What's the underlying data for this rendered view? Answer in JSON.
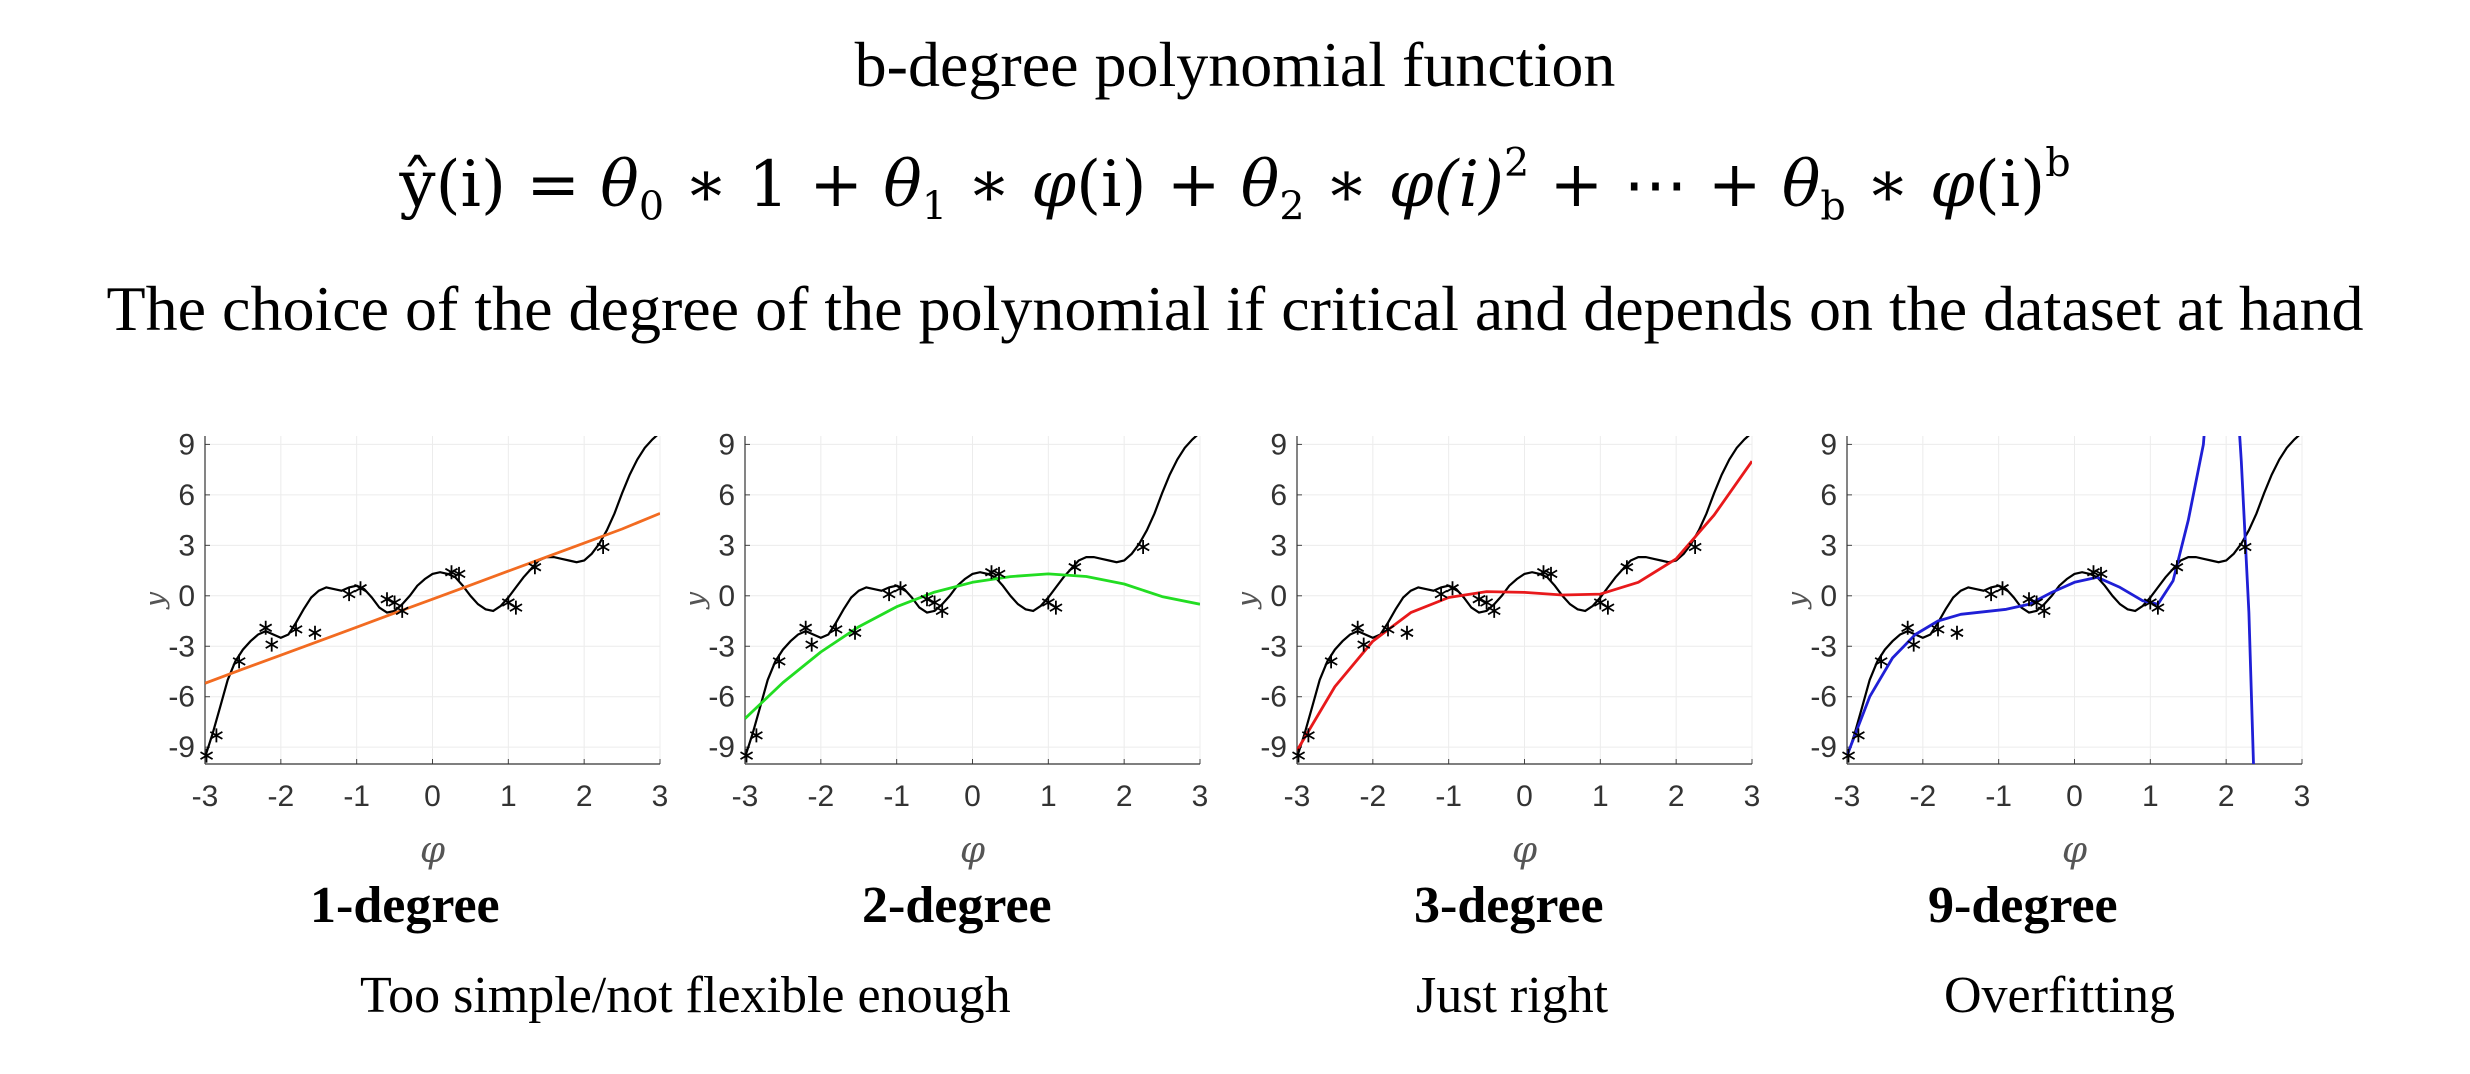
{
  "header": {
    "title": "b-degree polynomial function",
    "subtitle": "The choice of the degree of the polynomial if critical and depends on the dataset at hand"
  },
  "formula": {
    "lhs": "ŷ(i) = ",
    "theta": "θ",
    "phi": "φ",
    "i_roman": "(i)",
    "i_italic": "(i)",
    "times": " ∗ ",
    "plus": " + ",
    "one": "1",
    "ellipsis": "⋯",
    "sub0": "0",
    "sub1": "1",
    "sub2": "2",
    "subb": "b",
    "sup2": "2",
    "supb": "b"
  },
  "labels": {
    "verdict_simple": "Too simple/not flexible enough",
    "verdict_right": "Just right",
    "verdict_over": "Overfitting"
  },
  "chart_data": [
    {
      "type": "line",
      "caption": "1-degree",
      "xlabel": "φ",
      "ylabel": "y",
      "xlim": [
        -3,
        3
      ],
      "ylim": [
        -10,
        9.5
      ],
      "xticks": [
        "-3",
        "-2",
        "-1",
        "0",
        "1",
        "2",
        "3"
      ],
      "yticks": [
        "-9",
        "-6",
        "-3",
        "0",
        "3",
        "6",
        "9"
      ],
      "grid": true,
      "truth_color": "#000000",
      "fit_color": "#f26b21",
      "fit_x": [
        -3.0,
        -2.5,
        -2.0,
        -1.5,
        -1.0,
        -0.5,
        0.0,
        0.5,
        1.0,
        1.5,
        2.0,
        2.5,
        3.0
      ],
      "fit_y": [
        -5.2,
        -4.36,
        -3.53,
        -2.7,
        -1.87,
        -1.03,
        -0.2,
        0.63,
        1.47,
        2.3,
        3.13,
        3.97,
        4.9
      ]
    },
    {
      "type": "line",
      "caption": "2-degree",
      "xlabel": "φ",
      "ylabel": "y",
      "xlim": [
        -3,
        3
      ],
      "ylim": [
        -10,
        9.5
      ],
      "xticks": [
        "-3",
        "-2",
        "-1",
        "0",
        "1",
        "2",
        "3"
      ],
      "yticks": [
        "-9",
        "-6",
        "-3",
        "0",
        "3",
        "6",
        "9"
      ],
      "grid": true,
      "truth_color": "#000000",
      "fit_color": "#22dd22",
      "fit_x": [
        -3.0,
        -2.5,
        -2.0,
        -1.5,
        -1.0,
        -0.5,
        0.0,
        0.5,
        1.0,
        1.5,
        2.0,
        2.5,
        3.0
      ],
      "fit_y": [
        -7.3,
        -5.16,
        -3.34,
        -1.84,
        -0.65,
        0.22,
        0.8,
        1.14,
        1.3,
        1.15,
        0.7,
        -0.05,
        -0.5
      ]
    },
    {
      "type": "line",
      "caption": "3-degree",
      "xlabel": "φ",
      "ylabel": "y",
      "xlim": [
        -3,
        3
      ],
      "ylim": [
        -10,
        9.5
      ],
      "xticks": [
        "-3",
        "-2",
        "-1",
        "0",
        "1",
        "2",
        "3"
      ],
      "yticks": [
        "-9",
        "-6",
        "-3",
        "0",
        "3",
        "6",
        "9"
      ],
      "grid": true,
      "truth_color": "#000000",
      "fit_color": "#e8191b",
      "fit_x": [
        -3.0,
        -2.5,
        -2.0,
        -1.5,
        -1.0,
        -0.5,
        0.0,
        0.5,
        1.0,
        1.5,
        2.0,
        2.5,
        3.0
      ],
      "fit_y": [
        -9.2,
        -5.4,
        -2.7,
        -1.0,
        -0.1,
        0.25,
        0.2,
        0.05,
        0.1,
        0.8,
        2.2,
        4.8,
        8.0
      ]
    },
    {
      "type": "line",
      "caption": "9-degree",
      "xlabel": "φ",
      "ylabel": "y",
      "xlim": [
        -3,
        3
      ],
      "ylim": [
        -10,
        9.5
      ],
      "xticks": [
        "-3",
        "-2",
        "-1",
        "0",
        "1",
        "2",
        "3"
      ],
      "yticks": [
        "-9",
        "-6",
        "-3",
        "0",
        "3",
        "6",
        "9"
      ],
      "grid": true,
      "truth_color": "#000000",
      "fit_color": "#1f1fd6",
      "fit_x": [
        -3.0,
        -2.7,
        -2.4,
        -2.1,
        -1.8,
        -1.5,
        -1.2,
        -0.9,
        -0.6,
        -0.3,
        0.0,
        0.3,
        0.6,
        0.9,
        1.1,
        1.3,
        1.5,
        1.7,
        1.8,
        1.9,
        2.0,
        2.1,
        2.2,
        2.3,
        2.36
      ],
      "fit_y": [
        -9.5,
        -6.0,
        -3.7,
        -2.3,
        -1.5,
        -1.1,
        -0.95,
        -0.8,
        -0.5,
        0.2,
        0.8,
        1.1,
        0.5,
        -0.3,
        -0.5,
        0.9,
        4.5,
        9.0,
        15.0,
        18.0,
        19.0,
        15.0,
        8.0,
        -1.0,
        -10.0
      ]
    }
  ],
  "shared_data": {
    "truth_x": [
      -3.0,
      -2.9,
      -2.8,
      -2.7,
      -2.6,
      -2.5,
      -2.4,
      -2.3,
      -2.2,
      -2.1,
      -2.0,
      -1.9,
      -1.8,
      -1.7,
      -1.6,
      -1.5,
      -1.4,
      -1.3,
      -1.2,
      -1.1,
      -1.0,
      -0.9,
      -0.8,
      -0.7,
      -0.6,
      -0.5,
      -0.4,
      -0.3,
      -0.2,
      -0.1,
      0.0,
      0.1,
      0.2,
      0.3,
      0.4,
      0.5,
      0.6,
      0.7,
      0.8,
      0.9,
      1.0,
      1.1,
      1.2,
      1.3,
      1.4,
      1.5,
      1.6,
      1.7,
      1.8,
      1.9,
      2.0,
      2.1,
      2.2,
      2.3,
      2.4,
      2.5,
      2.6,
      2.7,
      2.8,
      2.9,
      3.0
    ],
    "truth_y": [
      -9.6,
      -8.2,
      -6.6,
      -5.0,
      -3.9,
      -3.2,
      -2.7,
      -2.3,
      -2.1,
      -2.3,
      -2.5,
      -2.3,
      -1.6,
      -0.8,
      -0.1,
      0.3,
      0.5,
      0.4,
      0.3,
      0.5,
      0.6,
      0.4,
      -0.1,
      -0.7,
      -1.0,
      -0.9,
      -0.5,
      0.0,
      0.6,
      1.0,
      1.3,
      1.4,
      1.3,
      1.1,
      0.6,
      0.0,
      -0.5,
      -0.8,
      -0.9,
      -0.6,
      -0.1,
      0.5,
      1.1,
      1.6,
      2.1,
      2.3,
      2.3,
      2.2,
      2.1,
      2.0,
      2.1,
      2.5,
      3.1,
      3.9,
      4.9,
      6.1,
      7.2,
      8.1,
      8.8,
      9.3,
      9.7
    ],
    "sample_x": [
      -2.98,
      -2.85,
      -2.55,
      -2.2,
      -2.12,
      -1.8,
      -1.55,
      -1.1,
      -0.95,
      -0.6,
      -0.5,
      -0.4,
      0.25,
      0.35,
      1.0,
      1.1,
      1.35,
      2.25
    ],
    "sample_y": [
      -9.5,
      -8.3,
      -3.9,
      -1.9,
      -2.9,
      -2.0,
      -2.2,
      0.1,
      0.45,
      -0.2,
      -0.4,
      -0.9,
      1.4,
      1.3,
      -0.4,
      -0.7,
      1.7,
      2.9
    ]
  }
}
